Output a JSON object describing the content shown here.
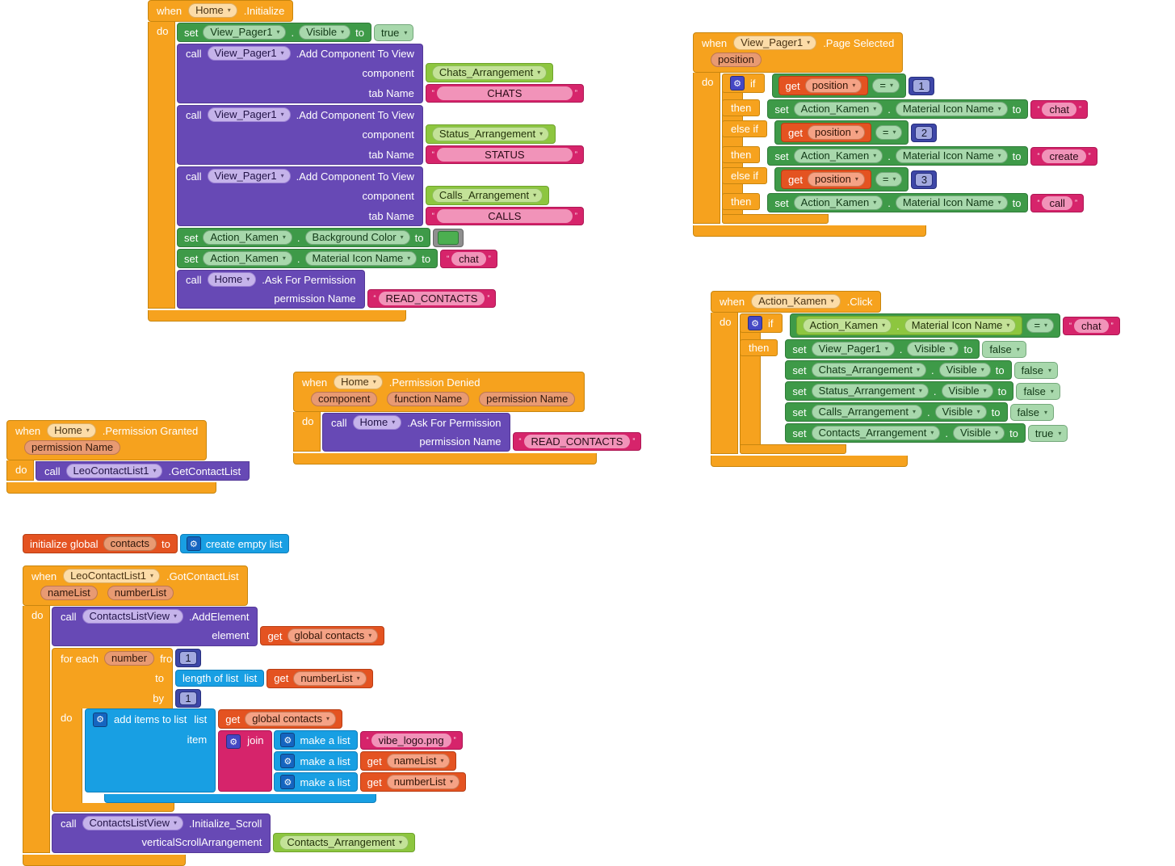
{
  "palette": {
    "orange": "#F6A21E",
    "orange_b": "#C8860F",
    "cream": "#FCDCA8",
    "cream_b": "#DDAE62",
    "salmon": "#E89A72",
    "salmon_b": "#BE7753",
    "purple": "#6749B5",
    "purple_b": "#533897",
    "lavender": "#C5B3EA",
    "lavender_b": "#9C82D4",
    "green": "#3E9A48",
    "green_b": "#2F7A38",
    "lgchip": "#A8D8AC",
    "lgchip_b": "#74A87B",
    "compgreen": "#8DC63F",
    "compgreen_b": "#6FA32C",
    "compchip": "#C3E298",
    "compchip_b": "#8FBF5A",
    "pink": "#D6246B",
    "pink_b": "#AD1653",
    "pinkfield": "#F193B9",
    "verm": "#E45321",
    "verm_b": "#B83E14",
    "vermchip": "#F5A285",
    "vermchip_b": "#C97B58",
    "blue": "#189FE3",
    "blue_b": "#0E7FBC",
    "indigo": "#3E47A8",
    "indigo_b": "#272F7E",
    "indigofield": "#A2A9DF",
    "gearI": "#4548C4",
    "gearB": "#1565C0",
    "gray": "#8F8F8F",
    "swatch": "#4CAF50"
  },
  "labels": {
    "when": "when",
    "do": "do",
    "set": "set",
    "call": "call",
    "to": "to",
    "if": "if",
    "then": "then",
    "else_if": "else if",
    "get": "get",
    "for_each": "for each",
    "from": "from",
    "by": "by",
    "list": "list",
    "item": "item",
    "dot": ".",
    "eq": "=",
    "gear": "⚙",
    "oq": "“",
    "cq": "”",
    "join": "join",
    "make_list": "make a list",
    "empty_list": "create empty list",
    "len_list": "length of list",
    "add_items": "add items to list",
    "init_global": "initialize global"
  },
  "blocks": {
    "home_init": {
      "t": "event",
      "comp": "Home",
      "evt": ".Initialize",
      "params": [],
      "do": [
        {
          "t": "set",
          "comp": "View_Pager1",
          "prop": "Visible",
          "val": {
            "t": "dd",
            "text": "true"
          }
        },
        {
          "t": "call",
          "comp": "View_Pager1",
          "method": ".Add Component To View",
          "args": [
            {
              "label": "component",
              "val": {
                "t": "compget",
                "name": "Chats_Arrangement"
              }
            },
            {
              "label": "tab Name",
              "val": {
                "t": "text",
                "text": "CHATS",
                "wide": true
              }
            }
          ]
        },
        {
          "t": "call",
          "comp": "View_Pager1",
          "method": ".Add Component To View",
          "args": [
            {
              "label": "component",
              "val": {
                "t": "compget",
                "name": "Status_Arrangement"
              }
            },
            {
              "label": "tab Name",
              "val": {
                "t": "text",
                "text": "STATUS",
                "wide": true
              }
            }
          ]
        },
        {
          "t": "call",
          "comp": "View_Pager1",
          "method": ".Add Component To View",
          "args": [
            {
              "label": "component",
              "val": {
                "t": "compget",
                "name": "Calls_Arrangement"
              }
            },
            {
              "label": "tab Name",
              "val": {
                "t": "text",
                "text": "CALLS",
                "wide": true
              }
            }
          ]
        },
        {
          "t": "set",
          "comp": "Action_Kamen",
          "prop": "Background Color",
          "val": {
            "t": "color"
          }
        },
        {
          "t": "set",
          "comp": "Action_Kamen",
          "prop": "Material Icon Name",
          "val": {
            "t": "text",
            "text": "chat"
          }
        },
        {
          "t": "call",
          "comp": "Home",
          "method": ".Ask For Permission",
          "args": [
            {
              "label": "permission Name",
              "val": {
                "t": "text",
                "text": "READ_CONTACTS"
              }
            }
          ]
        }
      ]
    },
    "pager_selected": {
      "t": "event",
      "comp": "View_Pager1",
      "evt": ".Page Selected",
      "params": [
        "position"
      ],
      "do": [
        {
          "t": "if",
          "rows": [
            {
              "kw": "if",
              "gear": true,
              "cond": {
                "t": "cmp",
                "op": "=",
                "left": {
                  "t": "get",
                  "name": "position"
                },
                "right": {
                  "t": "num",
                  "text": "1"
                }
              }
            },
            {
              "kw": "then",
              "stmts": [
                {
                  "t": "set",
                  "comp": "Action_Kamen",
                  "prop": "Material Icon Name",
                  "val": {
                    "t": "text",
                    "text": "chat"
                  }
                }
              ]
            },
            {
              "kw": "else_if",
              "cond": {
                "t": "cmp",
                "op": "=",
                "left": {
                  "t": "get",
                  "name": "position"
                },
                "right": {
                  "t": "num",
                  "text": "2"
                }
              }
            },
            {
              "kw": "then",
              "stmts": [
                {
                  "t": "set",
                  "comp": "Action_Kamen",
                  "prop": "Material Icon Name",
                  "val": {
                    "t": "text",
                    "text": "create"
                  }
                }
              ]
            },
            {
              "kw": "else_if",
              "cond": {
                "t": "cmp",
                "op": "=",
                "left": {
                  "t": "get",
                  "name": "position"
                },
                "right": {
                  "t": "num",
                  "text": "3"
                }
              }
            },
            {
              "kw": "then",
              "stmts": [
                {
                  "t": "set",
                  "comp": "Action_Kamen",
                  "prop": "Material Icon Name",
                  "val": {
                    "t": "text",
                    "text": "call"
                  }
                }
              ]
            }
          ]
        }
      ]
    },
    "kamen_click": {
      "t": "event",
      "comp": "Action_Kamen",
      "evt": ".Click",
      "params": [],
      "do": [
        {
          "t": "if",
          "rows": [
            {
              "kw": "if",
              "gear": true,
              "cond": {
                "t": "cmp",
                "op": "=",
                "left": {
                  "t": "propget",
                  "comp": "Action_Kamen",
                  "prop": "Material Icon Name"
                },
                "right": {
                  "t": "text",
                  "text": "chat"
                }
              }
            },
            {
              "kw": "then",
              "stmts": [
                {
                  "t": "set",
                  "comp": "View_Pager1",
                  "prop": "Visible",
                  "val": {
                    "t": "dd",
                    "text": "false"
                  }
                },
                {
                  "t": "set",
                  "comp": "Chats_Arrangement",
                  "prop": "Visible",
                  "val": {
                    "t": "dd",
                    "text": "false"
                  }
                },
                {
                  "t": "set",
                  "comp": "Status_Arrangement",
                  "prop": "Visible",
                  "val": {
                    "t": "dd",
                    "text": "false"
                  }
                },
                {
                  "t": "set",
                  "comp": "Calls_Arrangement",
                  "prop": "Visible",
                  "val": {
                    "t": "dd",
                    "text": "false"
                  }
                },
                {
                  "t": "set",
                  "comp": "Contacts_Arrangement",
                  "prop": "Visible",
                  "val": {
                    "t": "dd",
                    "text": "true"
                  }
                }
              ]
            }
          ]
        }
      ]
    },
    "perm_denied": {
      "t": "event",
      "comp": "Home",
      "evt": ".Permission Denied",
      "params": [
        "component",
        "function Name",
        "permission Name"
      ],
      "do": [
        {
          "t": "call",
          "comp": "Home",
          "method": ".Ask For Permission",
          "args": [
            {
              "label": "permission Name",
              "val": {
                "t": "text",
                "text": "READ_CONTACTS"
              }
            }
          ]
        }
      ]
    },
    "perm_granted": {
      "t": "event",
      "comp": "Home",
      "evt": ".Permission Granted",
      "params": [
        "permission Name"
      ],
      "do": [
        {
          "t": "call",
          "comp": "LeoContactList1",
          "method": ".GetContactList",
          "args": []
        }
      ]
    },
    "init_global": {
      "t": "initglobal",
      "name": "contacts",
      "val": {
        "t": "emptylist"
      }
    },
    "got_contacts": {
      "t": "event",
      "comp": "LeoContactList1",
      "evt": ".GotContactList",
      "params": [
        "nameList",
        "numberList"
      ],
      "do": [
        {
          "t": "call",
          "comp": "ContactsListView",
          "method": ".AddElement",
          "args": [
            {
              "label": "element",
              "val": {
                "t": "get",
                "name": "global contacts"
              }
            }
          ]
        },
        {
          "t": "foreach",
          "var": "number",
          "from": {
            "t": "num",
            "text": "1"
          },
          "to": {
            "t": "lenlist",
            "val": {
              "t": "get",
              "name": "numberList"
            }
          },
          "by": {
            "t": "num",
            "text": "1"
          },
          "do": [
            {
              "t": "additems",
              "list": {
                "t": "get",
                "name": "global contacts"
              },
              "item": {
                "t": "join",
                "items": [
                  {
                    "t": "makelist",
                    "val": {
                      "t": "text",
                      "text": "vibe_logo.png"
                    }
                  },
                  {
                    "t": "makelist",
                    "val": {
                      "t": "get",
                      "name": "nameList"
                    }
                  },
                  {
                    "t": "makelist",
                    "val": {
                      "t": "get",
                      "name": "numberList"
                    }
                  }
                ]
              }
            }
          ]
        },
        {
          "t": "call",
          "comp": "ContactsListView",
          "method": ".Initialize_Scroll",
          "args": [
            {
              "label": "verticalScrollArrangement",
              "val": {
                "t": "compget",
                "name": "Contacts_Arrangement"
              }
            }
          ]
        }
      ]
    }
  }
}
